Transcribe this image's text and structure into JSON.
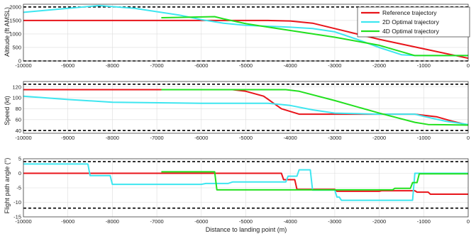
{
  "figure": {
    "xlabel": "Distance to landing point (m)",
    "series_colors": {
      "ref": "#e8141a",
      "opt2d": "#3ee6f0",
      "opt4d": "#22e01e"
    },
    "bound_color": "#000000"
  },
  "legend": {
    "entries": [
      {
        "key": "ref",
        "label": "Reference trajectory"
      },
      {
        "key": "opt2d",
        "label": "2D Optimal trajectory"
      },
      {
        "key": "opt4d",
        "label": "4D Optimal trajectory"
      }
    ]
  },
  "chart_data": [
    {
      "type": "line",
      "ylabel": "Altitude (ft AMSL)",
      "xlim": [
        -10000,
        0
      ],
      "ylim": [
        0,
        2100
      ],
      "xticks": [
        -10000,
        -9000,
        -8000,
        -7000,
        -6000,
        -5000,
        -4000,
        -3000,
        -2000,
        -1000,
        0
      ],
      "yticks": [
        0,
        500,
        1000,
        1500,
        2000
      ],
      "grid": true,
      "legend_position": "top-right",
      "bounds": [
        0,
        2000
      ],
      "series": [
        {
          "key": "ref",
          "name": "Reference trajectory",
          "x": [
            -10000,
            -6000,
            -4500,
            -4000,
            -3500,
            -3000,
            -2000,
            -1000,
            0
          ],
          "y": [
            1500,
            1500,
            1500,
            1480,
            1400,
            1200,
            800,
            450,
            100
          ]
        },
        {
          "key": "opt2d",
          "name": "2D Optimal trajectory",
          "x": [
            -10000,
            -9000,
            -8300,
            -7500,
            -6500,
            -6000,
            -5500,
            -5000,
            -4000,
            -3500,
            -3000,
            -2500,
            -2000,
            -1500,
            -1200,
            0
          ],
          "y": [
            1800,
            1950,
            2050,
            1950,
            1700,
            1530,
            1400,
            1320,
            1250,
            1200,
            1080,
            800,
            500,
            230,
            200,
            200
          ]
        },
        {
          "key": "opt4d",
          "name": "4D Optimal trajectory",
          "x": [
            -6900,
            -5700,
            -5500,
            -5000,
            -4000,
            -3000,
            -2000,
            -1200,
            0
          ],
          "y": [
            1600,
            1640,
            1560,
            1380,
            1130,
            880,
            580,
            200,
            200
          ]
        }
      ]
    },
    {
      "type": "line",
      "ylabel": "Speed (kt)",
      "xlim": [
        -10000,
        0
      ],
      "ylim": [
        35,
        130
      ],
      "xticks": [
        -10000,
        -9000,
        -8000,
        -7000,
        -6000,
        -5000,
        -4000,
        -3000,
        -2000,
        -1000,
        0
      ],
      "yticks": [
        40,
        60,
        80,
        100,
        120
      ],
      "grid": true,
      "bounds": [
        40,
        125
      ],
      "series": [
        {
          "key": "ref",
          "name": "Reference trajectory",
          "x": [
            -10000,
            -6900,
            -5300,
            -5000,
            -4600,
            -4200,
            -3800,
            -3000,
            -2000,
            -1200,
            -1000,
            -700,
            -400,
            0
          ],
          "y": [
            115,
            115,
            115,
            112,
            103,
            80,
            70,
            70,
            70,
            70,
            68,
            65,
            58,
            50
          ]
        },
        {
          "key": "opt2d",
          "name": "2D Optimal trajectory",
          "x": [
            -10000,
            -9000,
            -8000,
            -6000,
            -4500,
            -4000,
            -3500,
            -3000,
            -2000,
            -1200,
            -1000,
            -500,
            0
          ],
          "y": [
            103,
            97,
            92,
            90,
            90,
            86,
            78,
            72,
            70,
            70,
            66,
            57,
            51
          ]
        },
        {
          "key": "opt4d",
          "name": "4D Optimal trajectory",
          "x": [
            -6900,
            -4100,
            -3800,
            -3000,
            -2000,
            -1200,
            -900,
            0
          ],
          "y": [
            115,
            115,
            112,
            95,
            72,
            55,
            51,
            50
          ]
        }
      ]
    },
    {
      "type": "line",
      "ylabel": "Flight path angle (°)",
      "xlim": [
        -10000,
        0
      ],
      "ylim": [
        -15,
        5
      ],
      "xticks": [
        -10000,
        -9000,
        -8000,
        -7000,
        -6000,
        -5000,
        -4000,
        -3000,
        -2000,
        -1000,
        0
      ],
      "yticks": [
        -15,
        -10,
        -5,
        0,
        5
      ],
      "grid": true,
      "bounds": [
        -12,
        4
      ],
      "series": [
        {
          "key": "ref",
          "name": "Reference trajectory",
          "x": [
            -10000,
            -4200,
            -4150,
            -3900,
            -3850,
            -3000,
            -2950,
            -2000,
            -1950,
            -1200,
            -1150,
            -900,
            -850,
            0
          ],
          "y": [
            0,
            0,
            -2.2,
            -2.2,
            -5.5,
            -5.5,
            -6.2,
            -6.2,
            -6,
            -6,
            -6.5,
            -6.5,
            -7.2,
            -7.2
          ]
        },
        {
          "key": "opt2d",
          "name": "2D Optimal trajectory",
          "x": [
            -10000,
            -8550,
            -8500,
            -8050,
            -8000,
            -6000,
            -5900,
            -5400,
            -5300,
            -4100,
            -4050,
            -3850,
            -3800,
            -3550,
            -3500,
            -3000,
            -2950,
            -2900,
            -2850,
            -1250,
            -1200,
            0
          ],
          "y": [
            3.2,
            3.2,
            -0.8,
            -0.8,
            -3.8,
            -3.8,
            -3.5,
            -3.5,
            -3,
            -3,
            -1,
            -1,
            1.2,
            1.2,
            -5.8,
            -5.8,
            -8.2,
            -8.2,
            -9.3,
            -9.3,
            0,
            0
          ]
        },
        {
          "key": "opt4d",
          "name": "4D Optimal trajectory",
          "x": [
            -6900,
            -5700,
            -5650,
            -1700,
            -1650,
            -1300,
            -1250,
            -1150,
            -1100,
            0
          ],
          "y": [
            0.5,
            0.5,
            -5.7,
            -5.7,
            -5.2,
            -5.2,
            -3.2,
            -3.2,
            -0.2,
            -0.2
          ]
        }
      ]
    }
  ]
}
